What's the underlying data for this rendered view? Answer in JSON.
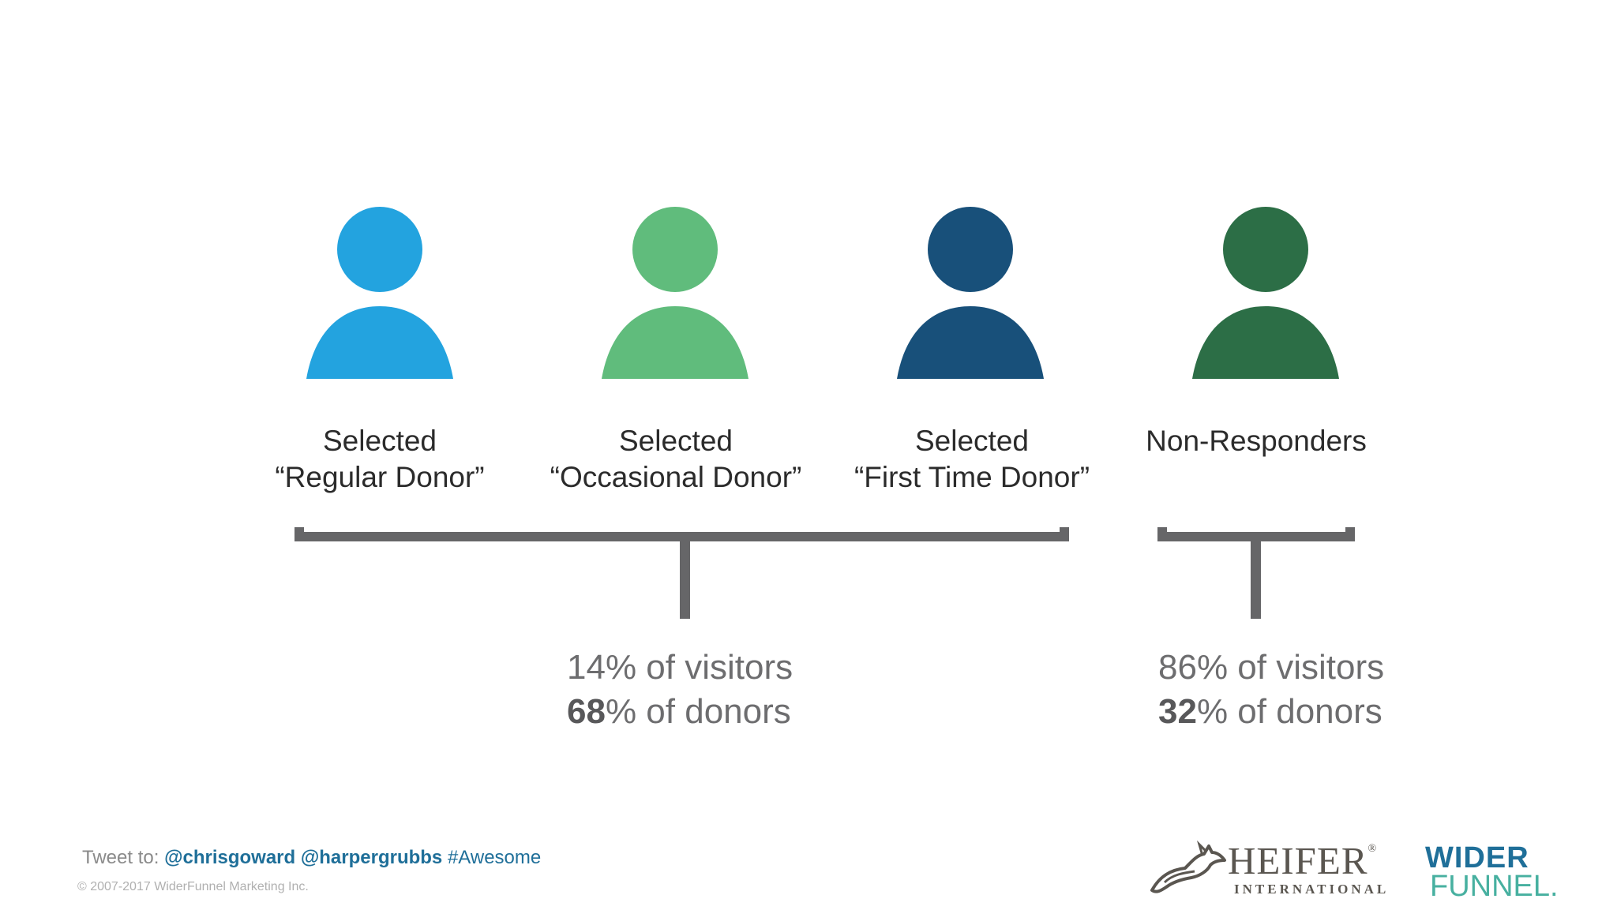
{
  "segments": [
    {
      "line1": "Selected",
      "line2": "“Regular Donor”",
      "color": "#23a3df",
      "icon": "person-icon"
    },
    {
      "line1": "Selected",
      "line2": "“Occasional Donor”",
      "color": "#60bc7c",
      "icon": "person-icon"
    },
    {
      "line1": "Selected",
      "line2": "“First Time Donor”",
      "color": "#18507a",
      "icon": "person-icon"
    },
    {
      "line1": "Non-Responders",
      "line2": "",
      "color": "#2c6e46",
      "icon": "person-icon"
    }
  ],
  "groups": [
    {
      "visitors_pct": "14",
      "visitors_text": "% of visitors",
      "donors_pct": "68",
      "donors_text": "% of donors"
    },
    {
      "visitors_pct": "86",
      "visitors_text": "% of visitors",
      "donors_pct": "32",
      "donors_text": "% of donors"
    }
  ],
  "footer": {
    "tweet_prefix": "Tweet to: ",
    "handle1": "@chrisgoward",
    "handle2": "@harpergrubbs",
    "hashtag": "#Awesome",
    "copyright": "© 2007-2017 WiderFunnel Marketing Inc."
  },
  "logos": {
    "heifer_name": "HEIFER",
    "heifer_reg": "®",
    "heifer_sub": "INTERNATIONAL",
    "wf_top": "WIDER",
    "wf_bottom": "FUNNEL."
  },
  "colors": {
    "bracket": "#666668",
    "brand_blue": "#1f6f99"
  }
}
